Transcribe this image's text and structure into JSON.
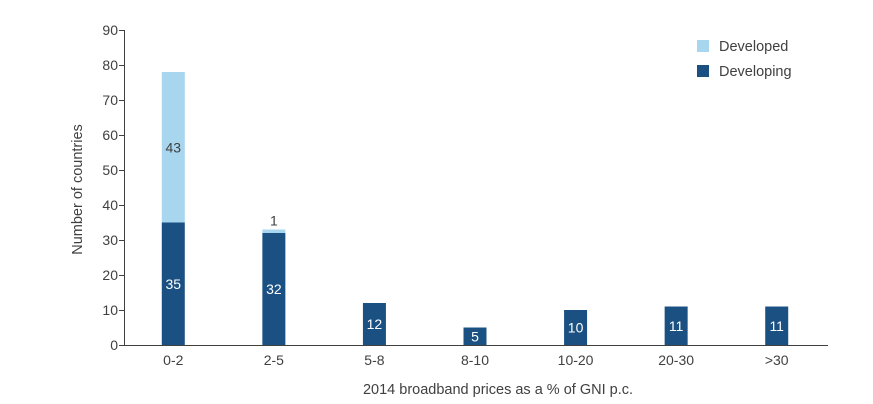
{
  "chart_data": {
    "type": "bar",
    "stacked": true,
    "xlabel": "2014 broadband prices as a % of GNI p.c.",
    "ylabel": "Number of countries",
    "ylim": [
      0,
      90
    ],
    "yticks": [
      0,
      10,
      20,
      30,
      40,
      50,
      60,
      70,
      80,
      90
    ],
    "grid": false,
    "legend_position": "top-right",
    "categories": [
      "0-2",
      "2-5",
      "5-8",
      "8-10",
      "10-20",
      "20-30",
      ">30"
    ],
    "series": [
      {
        "name": "Developing",
        "color": "#1B5083",
        "label_color": "#ffffff",
        "values": [
          35,
          32,
          12,
          5,
          10,
          11,
          11
        ]
      },
      {
        "name": "Developed",
        "color": "#A9D6EF",
        "label_color": "#404040",
        "values": [
          43,
          1,
          0,
          0,
          0,
          0,
          0
        ]
      }
    ]
  }
}
